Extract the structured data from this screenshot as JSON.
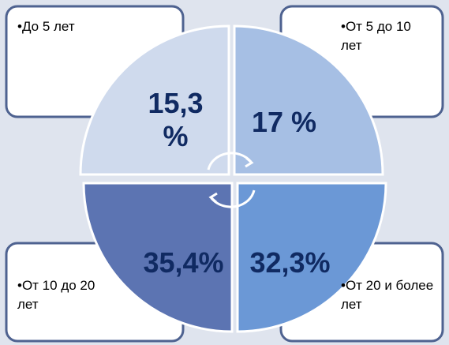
{
  "quadrants": [
    {
      "label": "•До 5 лет",
      "value": "15,3 %"
    },
    {
      "label": "•От 5 до 10 лет",
      "value": "17 %"
    },
    {
      "label": "•От 10 до 20 лет",
      "value": "35,4%"
    },
    {
      "label": "•От 20 и более лет",
      "value": "32,3%"
    }
  ]
}
